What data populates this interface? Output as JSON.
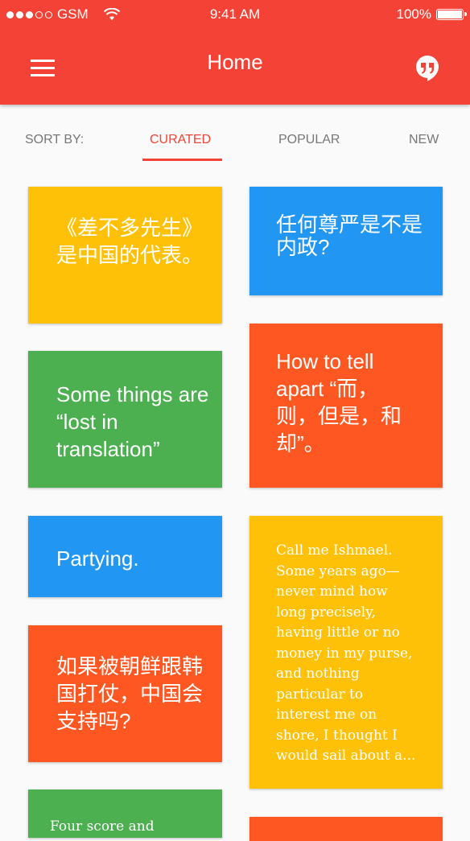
{
  "status": {
    "carrier": "GSM",
    "time": "9:41 AM",
    "battery": "100%"
  },
  "header": {
    "title": "Home",
    "menu_icon": "hamburger-menu-icon",
    "quote_icon": "quote-bubble-icon"
  },
  "sort": {
    "label": "SORT BY:",
    "tabs": [
      {
        "label": "CURATED"
      },
      {
        "label": "POPULAR"
      },
      {
        "label": "NEW"
      }
    ],
    "active": "CURATED"
  },
  "colors": {
    "header": "#f44336",
    "yellow": "#ffc107",
    "blue": "#2196f3",
    "green": "#4caf50",
    "orange": "#ff5722",
    "background": "#fafafa"
  },
  "cards": [
    {
      "text": "《差不多先生》是中国的代表。",
      "color": "#ffc107"
    },
    {
      "text": "任何尊严是不是内政?",
      "color": "#2196f3"
    },
    {
      "text": "Some things are “lost in translation”",
      "color": "#4caf50"
    },
    {
      "text": "How to tell apart “而，则，但是，和却”。",
      "color": "#ff5722"
    },
    {
      "text": "Partying.",
      "color": "#2196f3"
    },
    {
      "text": "Call me Ishmael. Some years ago—never mind how long precisely, having little or no money in my purse, and nothing particular to interest me on shore, I thought I would sail about a...",
      "color": "#ffc107"
    },
    {
      "text": "如果被朝鲜跟韩国打仗，中国会支持吗?",
      "color": "#ff5722"
    },
    {
      "text": "Four score and",
      "color": "#4caf50"
    },
    {
      "text": "",
      "color": "#ff5722"
    }
  ]
}
